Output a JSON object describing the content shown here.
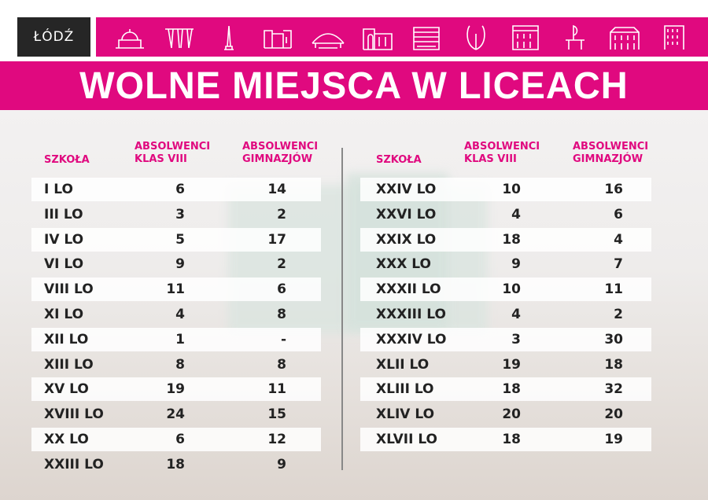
{
  "logo": {
    "text": "ŁÓDŹ"
  },
  "icons": [
    "palm-house-icon",
    "tree-arches-icon",
    "monument-icon",
    "factory-icon",
    "arena-icon",
    "gate-building-icon",
    "modern-building-icon",
    "leaf-sculpture-icon",
    "palace-icon",
    "piano-monument-icon",
    "tenement-icon",
    "tower-block-icon"
  ],
  "colors": {
    "accent": "#e0097f",
    "logo_bg": "#262626"
  },
  "title": "WOLNE MIEJSCA W LICEACH",
  "headers": {
    "school": "SZKOŁA",
    "col2_l1": "ABSOLWENCI",
    "col2_l2": "KLAS VIII",
    "col3_l1": "ABSOLWENCI",
    "col3_l2": "GIMNAZJÓW"
  },
  "left_rows": [
    [
      "I LO",
      "6",
      "14"
    ],
    [
      "III LO",
      "3",
      "2"
    ],
    [
      "IV LO",
      "5",
      "17"
    ],
    [
      "VI LO",
      "9",
      "2"
    ],
    [
      "VIII LO",
      "11",
      "6"
    ],
    [
      "XI LO",
      "4",
      "8"
    ],
    [
      "XII LO",
      "1",
      "-"
    ],
    [
      "XIII LO",
      "8",
      "8"
    ],
    [
      "XV LO",
      "19",
      "11"
    ],
    [
      "XVIII LO",
      "24",
      "15"
    ],
    [
      "XX LO",
      "6",
      "12"
    ],
    [
      "XXIII LO",
      "18",
      "9"
    ]
  ],
  "right_rows": [
    [
      "XXIV LO",
      "10",
      "16"
    ],
    [
      "XXVI LO",
      "4",
      "6"
    ],
    [
      "XXIX LO",
      "18",
      "4"
    ],
    [
      "XXX LO",
      "9",
      "7"
    ],
    [
      "XXXII LO",
      "10",
      "11"
    ],
    [
      "XXXIII LO",
      "4",
      "2"
    ],
    [
      "XXXIV LO",
      "3",
      "30"
    ],
    [
      "XLII LO",
      "19",
      "18"
    ],
    [
      "XLIII LO",
      "18",
      "32"
    ],
    [
      "XLIV LO",
      "20",
      "20"
    ],
    [
      "XLVII LO",
      "18",
      "19"
    ]
  ]
}
